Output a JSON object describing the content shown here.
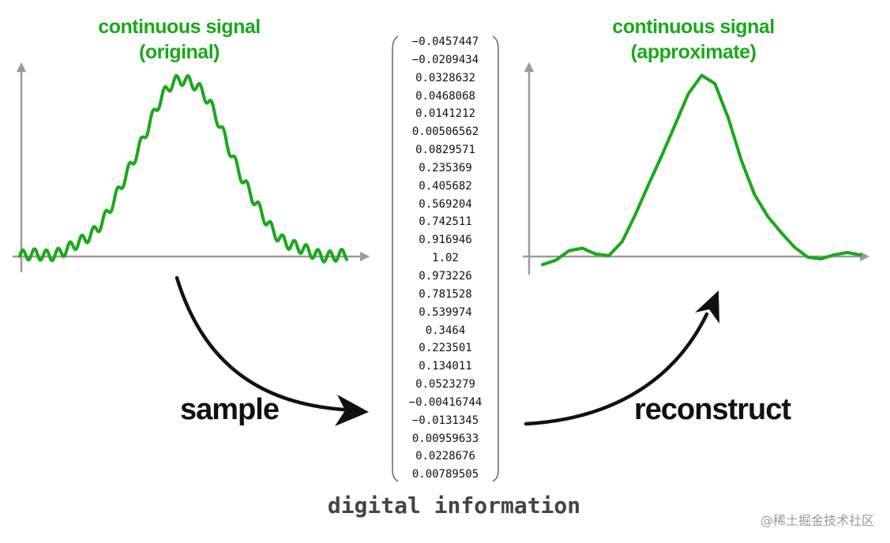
{
  "left_panel": {
    "title_line1": "continuous signal",
    "title_line2": "(original)"
  },
  "right_panel": {
    "title_line1": "continuous signal",
    "title_line2": "(approximate)"
  },
  "arrows": {
    "sample_label": "sample",
    "reconstruct_label": "reconstruct"
  },
  "samples": {
    "values": [
      "-0.0457447",
      "-0.0209434",
      "0.0328632",
      "0.0468068",
      "0.0141212",
      "0.00506562",
      "0.0829571",
      "0.235369",
      "0.405682",
      "0.569204",
      "0.742511",
      "0.916946",
      "1.02",
      "0.973226",
      "0.781528",
      "0.539974",
      "0.3464",
      "0.223501",
      "0.134011",
      "0.0523279",
      "-0.00416744",
      "-0.0131345",
      "0.00959633",
      "0.0228676",
      "0.00789505"
    ]
  },
  "footer": {
    "label": "digital information"
  },
  "watermark": {
    "text": "@稀土掘金技术社区"
  },
  "colors": {
    "signal": "#1aa81a",
    "axis": "#9b9b9b",
    "arrow": "#111111"
  }
}
